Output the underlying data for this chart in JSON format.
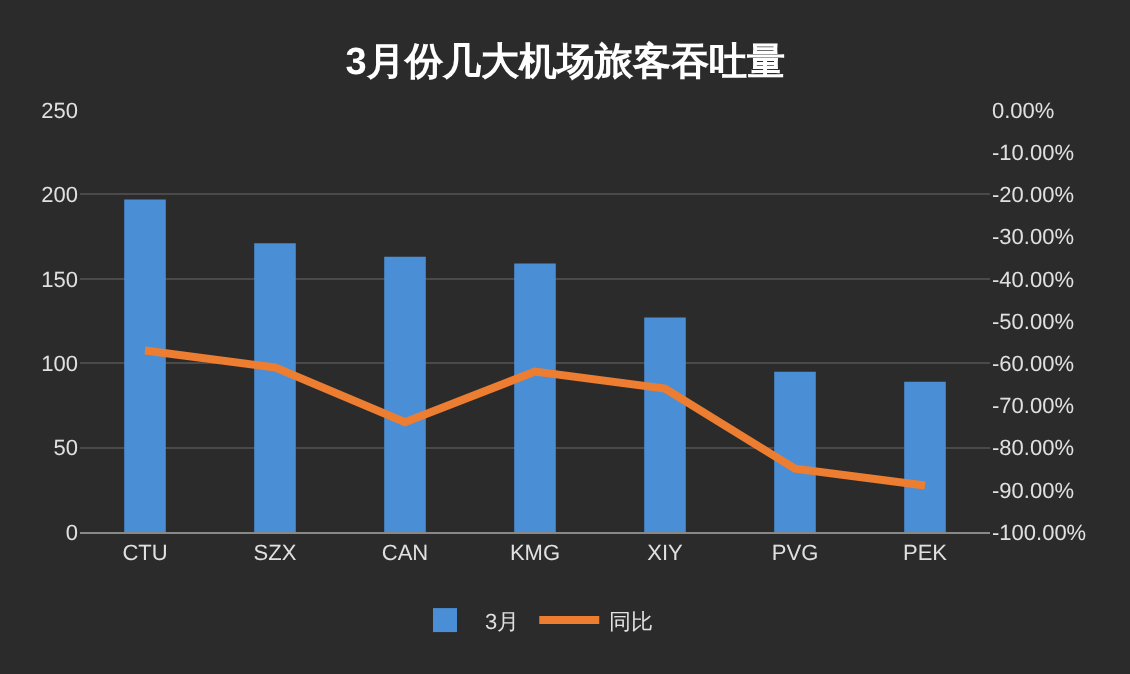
{
  "chart_data": {
    "type": "bar",
    "title": "3月份几大机场旅客吞吐量",
    "categories": [
      "CTU",
      "SZX",
      "CAN",
      "KMG",
      "XIY",
      "PVG",
      "PEK"
    ],
    "series": [
      {
        "name": "3月",
        "color": "#4a8fd6",
        "values": [
          197,
          171,
          163,
          159,
          127,
          95,
          89
        ]
      },
      {
        "name": "同比",
        "type": "line",
        "axis": "y2",
        "color": "#ed7d31",
        "values": [
          -57,
          -61,
          -74,
          -62,
          -66,
          -85,
          -89
        ]
      }
    ],
    "ylim": [
      0,
      250
    ],
    "yticks": [
      0,
      50,
      100,
      150,
      200,
      250
    ],
    "y2lim": [
      -100,
      0
    ],
    "y2ticks": [
      {
        "value": 0,
        "label": "0.00%"
      },
      {
        "value": -10,
        "label": "-10.00%"
      },
      {
        "value": -20,
        "label": "-20.00%"
      },
      {
        "value": -30,
        "label": "-30.00%"
      },
      {
        "value": -40,
        "label": "-40.00%"
      },
      {
        "value": -50,
        "label": "-50.00%"
      },
      {
        "value": -60,
        "label": "-60.00%"
      },
      {
        "value": -70,
        "label": "-70.00%"
      },
      {
        "value": -80,
        "label": "-80.00%"
      },
      {
        "value": -90,
        "label": "-90.00%"
      },
      {
        "value": -100,
        "label": "-100.00%"
      }
    ],
    "grid": "y",
    "legend": "bottom",
    "marker": "none",
    "line_style": "solid"
  }
}
